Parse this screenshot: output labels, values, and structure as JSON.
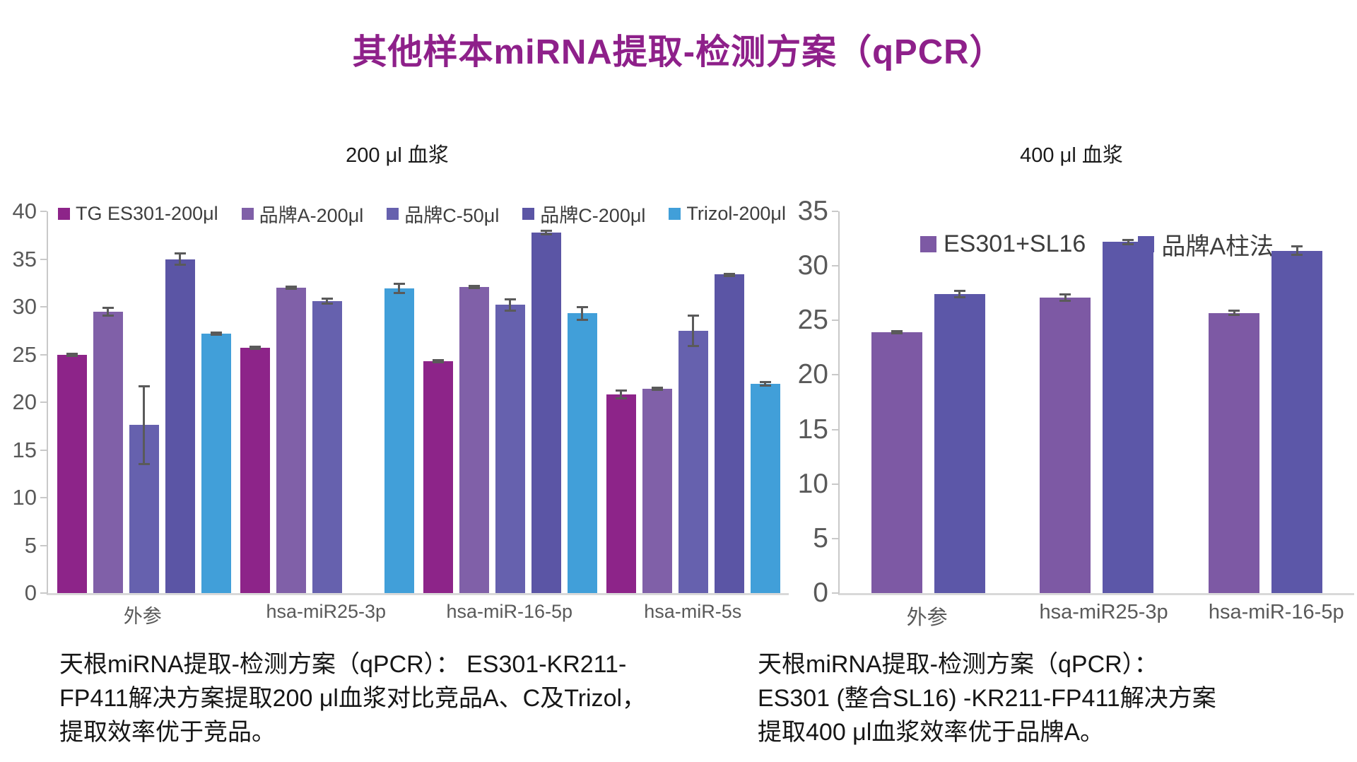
{
  "page": {
    "title": "其他样本miRNA提取-检测方案（qPCR）",
    "title_color": "#8E208A",
    "background": "#FFFFFF"
  },
  "chart_data": [
    {
      "type": "bar",
      "title": "200 μl 血浆",
      "categories": [
        "外参",
        "hsa-miR25-3p",
        "hsa-miR-16-5p",
        "hsa-miR-5s"
      ],
      "series": [
        {
          "name": "TG ES301-200μl",
          "color": "#8D2489",
          "values": [
            25.0,
            25.7,
            24.3,
            20.8
          ],
          "errors": [
            0.2,
            0.2,
            0.2,
            0.5
          ]
        },
        {
          "name": "品牌A-200μl",
          "color": "#8060A8",
          "values": [
            29.5,
            32.0,
            32.1,
            21.4
          ],
          "errors": [
            0.5,
            0.2,
            0.2,
            0.2
          ]
        },
        {
          "name": "品牌C-50μl",
          "color": "#6661AE",
          "values": [
            17.6,
            30.6,
            30.2,
            27.5
          ],
          "errors": [
            4.2,
            0.4,
            0.7,
            1.7
          ]
        },
        {
          "name": "品牌C-200μl",
          "color": "#5B55A5",
          "values": [
            35.0,
            null,
            37.8,
            33.4
          ],
          "errors": [
            0.7,
            null,
            0.3,
            0.15
          ]
        },
        {
          "name": "Trizol-200μl",
          "color": "#419FD9",
          "values": [
            27.2,
            31.9,
            29.3,
            21.9
          ],
          "errors": [
            0.2,
            0.6,
            0.8,
            0.3
          ]
        }
      ],
      "ylim": [
        0,
        40
      ],
      "ytick_step": 5,
      "legend_position": "top-spread",
      "grid": false
    },
    {
      "type": "bar",
      "title": "400 μl 血浆",
      "categories": [
        "外参",
        "hsa-miR25-3p",
        "hsa-miR-16-5p"
      ],
      "series": [
        {
          "name": "ES301+SL16",
          "color": "#7D59A4",
          "values": [
            23.9,
            27.1,
            25.7
          ],
          "errors": [
            0.2,
            0.4,
            0.3
          ]
        },
        {
          "name": "品牌A柱法",
          "color": "#5C57A8",
          "values": [
            27.4,
            32.2,
            31.4
          ],
          "errors": [
            0.4,
            0.3,
            0.5
          ]
        }
      ],
      "ylim": [
        0,
        35
      ],
      "ytick_step": 5,
      "legend_position": "top-center",
      "grid": false
    }
  ],
  "captions": {
    "left_lines": [
      "天根miRNA提取-检测方案（qPCR）： ES301-KR211-",
      "FP411解决方案提取200 μl血浆对比竞品A、C及Trizol，",
      "提取效率优于竞品。"
    ],
    "right_lines": [
      "天根miRNA提取-检测方案（qPCR）：",
      "ES301 (整合SL16) -KR211-FP411解决方案",
      "提取400 μl血浆效率优于品牌A。"
    ]
  },
  "style_tokens": {
    "axis_label_color": "#595959",
    "axis_line_color": "#C9C9C9",
    "error_bar_color": "#5A5A5A",
    "legend_text_color": "#3D3D3D"
  }
}
